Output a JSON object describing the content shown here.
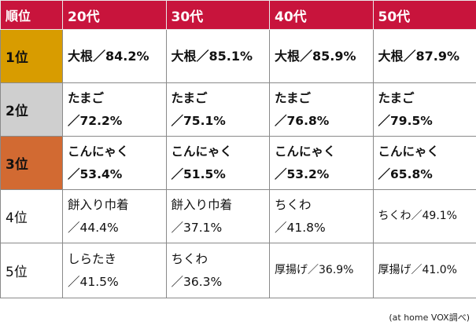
{
  "header": {
    "rank": "順位",
    "ages": [
      "20代",
      "30代",
      "40代",
      "50代"
    ]
  },
  "rows": [
    {
      "rank": "1位",
      "cells": [
        {
          "item": "大根",
          "sep": "／",
          "value": "84.2%"
        },
        {
          "item": "大根",
          "sep": "／",
          "value": "85.1%"
        },
        {
          "item": "大根",
          "sep": "／",
          "value": "85.9%"
        },
        {
          "item": "大根",
          "sep": "／",
          "value": "87.9%"
        }
      ]
    },
    {
      "rank": "2位",
      "cells": [
        {
          "item": "たまご",
          "value": "／72.2%"
        },
        {
          "item": "たまご",
          "value": "／75.1%"
        },
        {
          "item": "たまご",
          "value": "／76.8%"
        },
        {
          "item": "たまご",
          "value": "／79.5%"
        }
      ]
    },
    {
      "rank": "3位",
      "cells": [
        {
          "item": "こんにゃく",
          "value": "／53.4%"
        },
        {
          "item": "こんにゃく",
          "value": "／51.5%"
        },
        {
          "item": "こんにゃく",
          "value": "／53.2%"
        },
        {
          "item": "こんにゃく",
          "value": "／65.8%"
        }
      ]
    },
    {
      "rank": "4位",
      "cells": [
        {
          "item": "餅入り巾着",
          "value": "／44.4%"
        },
        {
          "item": "餅入り巾着",
          "value": "／37.1%"
        },
        {
          "item": "ちくわ",
          "value": "／41.8%"
        },
        {
          "item": "ちくわ",
          "sep": "／",
          "value": "49.1%"
        }
      ]
    },
    {
      "rank": "5位",
      "cells": [
        {
          "item": "しらたき",
          "value": "／41.5%"
        },
        {
          "item": "ちくわ",
          "value": "／36.3%"
        },
        {
          "item": "厚揚げ",
          "sep": "／",
          "value": "36.9%"
        },
        {
          "item": "厚揚げ",
          "sep": "／",
          "value": "41.0%"
        }
      ]
    }
  ],
  "source": "(at home VOX調べ)",
  "colors": {
    "header_bg": "#c8143c",
    "rank1": "#d89c00",
    "rank2": "#cfcfcf",
    "rank3": "#d26a32"
  }
}
